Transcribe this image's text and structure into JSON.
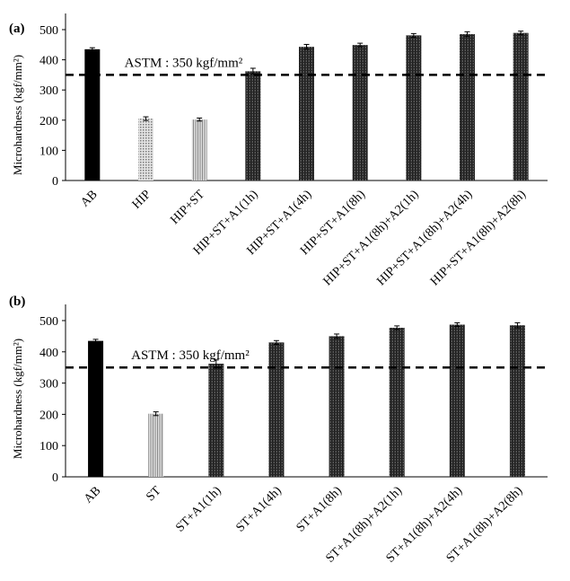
{
  "chart_data": [
    {
      "panel_label": "(a)",
      "type": "bar",
      "ylabel": "Microhardness (kgf/mm²)",
      "ylim": [
        0,
        500
      ],
      "yticks": [
        0,
        100,
        200,
        300,
        400,
        500
      ],
      "categories": [
        "AB",
        "HIP",
        "HIP+ST",
        "HIP+ST+A1(1h)",
        "HIP+ST+A1(4h)",
        "HIP+ST+A1(8h)",
        "HIP+ST+A1(8h)+A2(1h)",
        "HIP+ST+A1(8h)+A2(4h)",
        "HIP+ST+A1(8h)+A2(8h)"
      ],
      "values": [
        435,
        205,
        202,
        362,
        443,
        449,
        481,
        485,
        489
      ],
      "errors": [
        5,
        6,
        5,
        10,
        8,
        6,
        6,
        8,
        6
      ],
      "reference_line": {
        "value": 350,
        "label": "ASTM : 350 kgf/mm²",
        "style": "dashed"
      },
      "grid": false,
      "bar_styles": [
        "solid",
        "dots",
        "lines",
        "cross",
        "cross",
        "cross",
        "cross",
        "cross",
        "cross"
      ]
    },
    {
      "panel_label": "(b)",
      "type": "bar",
      "ylabel": "Microhardness (kgf/mm²)",
      "ylim": [
        0,
        500
      ],
      "yticks": [
        0,
        100,
        200,
        300,
        400,
        500
      ],
      "categories": [
        "AB",
        "ST",
        "ST+A1(1h)",
        "ST+A1(4h)",
        "ST+A1(8h)",
        "ST+A1(8h)+A2(1h)",
        "ST+A1(8h)+A2(4h)",
        "ST+A1(8h)+A2(8h)"
      ],
      "values": [
        435,
        202,
        362,
        430,
        450,
        477,
        487,
        485
      ],
      "errors": [
        5,
        6,
        12,
        6,
        7,
        6,
        6,
        8
      ],
      "reference_line": {
        "value": 350,
        "label": "ASTM : 350 kgf/mm²",
        "style": "dashed"
      },
      "grid": false,
      "bar_styles": [
        "solid",
        "lines",
        "cross",
        "cross",
        "cross",
        "cross",
        "cross",
        "cross"
      ]
    }
  ],
  "colors": {
    "bar_dark": "#222222",
    "bar_light": "#9a9a9a",
    "axis": "#000000",
    "reference_line": "#000000"
  }
}
